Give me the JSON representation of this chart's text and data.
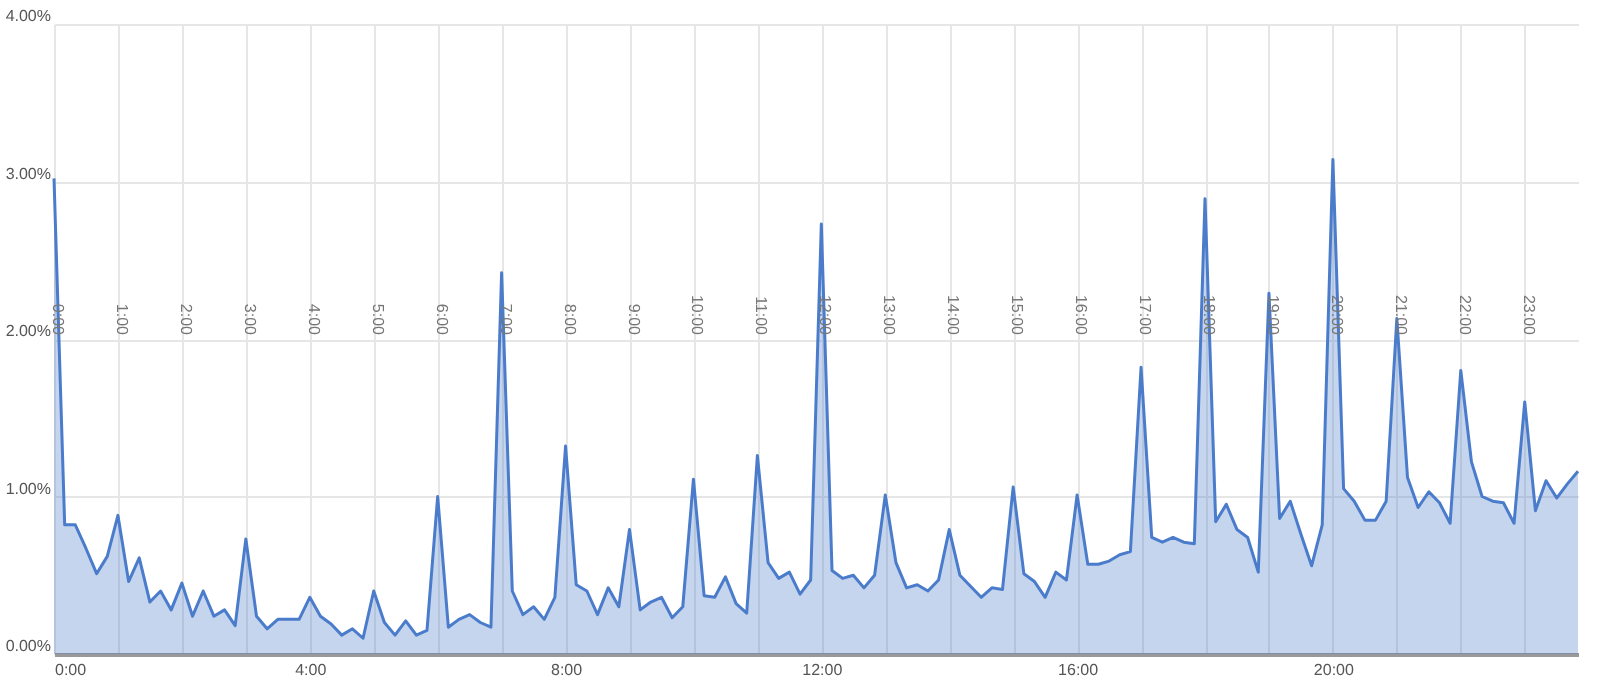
{
  "chart_data": {
    "type": "area",
    "x": [
      0,
      0.167,
      0.333,
      0.5,
      0.667,
      0.833,
      1,
      1.167,
      1.333,
      1.5,
      1.667,
      1.833,
      2,
      2.167,
      2.333,
      2.5,
      2.667,
      2.833,
      3,
      3.167,
      3.333,
      3.5,
      3.667,
      3.833,
      4,
      4.167,
      4.333,
      4.5,
      4.667,
      4.833,
      5,
      5.167,
      5.333,
      5.5,
      5.667,
      5.833,
      6,
      6.167,
      6.333,
      6.5,
      6.667,
      6.833,
      7,
      7.167,
      7.333,
      7.5,
      7.667,
      7.833,
      8,
      8.167,
      8.333,
      8.5,
      8.667,
      8.833,
      9,
      9.167,
      9.333,
      9.5,
      9.667,
      9.833,
      10,
      10.167,
      10.333,
      10.5,
      10.667,
      10.833,
      11,
      11.167,
      11.333,
      11.5,
      11.667,
      11.833,
      12,
      12.167,
      12.333,
      12.5,
      12.667,
      12.833,
      13,
      13.167,
      13.333,
      13.5,
      13.667,
      13.833,
      14,
      14.167,
      14.333,
      14.5,
      14.667,
      14.833,
      15,
      15.167,
      15.333,
      15.5,
      15.667,
      15.833,
      16,
      16.167,
      16.333,
      16.5,
      16.667,
      16.833,
      17,
      17.167,
      17.333,
      17.5,
      17.667,
      17.833,
      18,
      18.167,
      18.333,
      18.5,
      18.667,
      18.833,
      19,
      19.167,
      19.333,
      19.5,
      19.667,
      19.833,
      20,
      20.167,
      20.333,
      20.5,
      20.667,
      20.833,
      21,
      21.167,
      21.333,
      21.5,
      21.667,
      21.833,
      22,
      22.167,
      22.333,
      22.5,
      22.667,
      22.833,
      23,
      23.167,
      23.333,
      23.5,
      23.667,
      23.833
    ],
    "series": [
      {
        "color": "#4a7ccb",
        "values": [
          3.02,
          0.82,
          0.82,
          0.67,
          0.51,
          0.62,
          0.88,
          0.46,
          0.61,
          0.33,
          0.4,
          0.28,
          0.45,
          0.24,
          0.4,
          0.24,
          0.28,
          0.18,
          0.73,
          0.24,
          0.16,
          0.22,
          0.22,
          0.22,
          0.36,
          0.24,
          0.19,
          0.12,
          0.16,
          0.1,
          0.4,
          0.2,
          0.12,
          0.21,
          0.12,
          0.15,
          1.0,
          0.17,
          0.22,
          0.25,
          0.2,
          0.17,
          2.42,
          0.4,
          0.25,
          0.3,
          0.22,
          0.36,
          1.32,
          0.44,
          0.4,
          0.25,
          0.42,
          0.3,
          0.79,
          0.28,
          0.33,
          0.36,
          0.23,
          0.3,
          1.11,
          0.37,
          0.36,
          0.49,
          0.32,
          0.26,
          1.26,
          0.58,
          0.48,
          0.52,
          0.38,
          0.47,
          2.73,
          0.53,
          0.48,
          0.5,
          0.42,
          0.5,
          1.01,
          0.58,
          0.42,
          0.44,
          0.4,
          0.47,
          0.79,
          0.5,
          0.43,
          0.36,
          0.42,
          0.41,
          1.06,
          0.51,
          0.46,
          0.36,
          0.52,
          0.47,
          1.01,
          0.57,
          0.57,
          0.59,
          0.63,
          0.65,
          1.82,
          0.74,
          0.71,
          0.74,
          0.71,
          0.7,
          2.89,
          0.84,
          0.95,
          0.79,
          0.74,
          0.52,
          2.29,
          0.86,
          0.97,
          0.76,
          0.56,
          0.82,
          3.14,
          1.05,
          0.97,
          0.85,
          0.85,
          0.97,
          2.13,
          1.12,
          0.93,
          1.03,
          0.96,
          0.83,
          1.8,
          1.22,
          1.0,
          0.97,
          0.96,
          0.83,
          1.6,
          0.91,
          1.1,
          0.99,
          1.08,
          1.16
        ]
      }
    ],
    "xlim": [
      0,
      23.833
    ],
    "xticks": [
      {
        "value": 0,
        "label": "0:00"
      },
      {
        "value": 1,
        "label": null
      },
      {
        "value": 2,
        "label": null
      },
      {
        "value": 3,
        "label": null
      },
      {
        "value": 4,
        "label": "4:00"
      },
      {
        "value": 5,
        "label": null
      },
      {
        "value": 6,
        "label": null
      },
      {
        "value": 7,
        "label": null
      },
      {
        "value": 8,
        "label": "8:00"
      },
      {
        "value": 9,
        "label": null
      },
      {
        "value": 10,
        "label": null
      },
      {
        "value": 11,
        "label": null
      },
      {
        "value": 12,
        "label": "12:00"
      },
      {
        "value": 13,
        "label": null
      },
      {
        "value": 14,
        "label": null
      },
      {
        "value": 15,
        "label": null
      },
      {
        "value": 16,
        "label": "16:00"
      },
      {
        "value": 17,
        "label": null
      },
      {
        "value": 18,
        "label": null
      },
      {
        "value": 19,
        "label": null
      },
      {
        "value": 20,
        "label": "20:00"
      },
      {
        "value": 21,
        "label": null
      },
      {
        "value": 22,
        "label": null
      },
      {
        "value": 23,
        "label": null
      }
    ],
    "x2lim": [
      0,
      23.833
    ],
    "x2ticks": [
      {
        "value": 0,
        "label": "0:00"
      },
      {
        "value": 1,
        "label": "1:00"
      },
      {
        "value": 2,
        "label": "2:00"
      },
      {
        "value": 3,
        "label": "3:00"
      },
      {
        "value": 4,
        "label": "4:00"
      },
      {
        "value": 5,
        "label": "5:00"
      },
      {
        "value": 6,
        "label": "6:00"
      },
      {
        "value": 7,
        "label": "7:00"
      },
      {
        "value": 8,
        "label": "8:00"
      },
      {
        "value": 9,
        "label": "9:00"
      },
      {
        "value": 10,
        "label": "10:00"
      },
      {
        "value": 11,
        "label": "11:00"
      },
      {
        "value": 12,
        "label": "12:00"
      },
      {
        "value": 13,
        "label": "13:00"
      },
      {
        "value": 14,
        "label": "14:00"
      },
      {
        "value": 15,
        "label": "15:00"
      },
      {
        "value": 16,
        "label": "16:00"
      },
      {
        "value": 17,
        "label": "17:00"
      },
      {
        "value": 18,
        "label": "18:00"
      },
      {
        "value": 19,
        "label": "19:00"
      },
      {
        "value": 20,
        "label": "20:00"
      },
      {
        "value": 21,
        "label": "21:00"
      },
      {
        "value": 22,
        "label": "22:00"
      },
      {
        "value": 23,
        "label": "23:00"
      }
    ],
    "ylim": [
      0,
      4
    ],
    "yticks": [
      {
        "value": 0,
        "label": "0.00%"
      },
      {
        "value": 1,
        "label": "1.00%"
      },
      {
        "value": 2,
        "label": "2.00%"
      },
      {
        "value": 3,
        "label": "3.00%"
      },
      {
        "value": 4,
        "label": "4.00%"
      }
    ],
    "grid": true
  }
}
